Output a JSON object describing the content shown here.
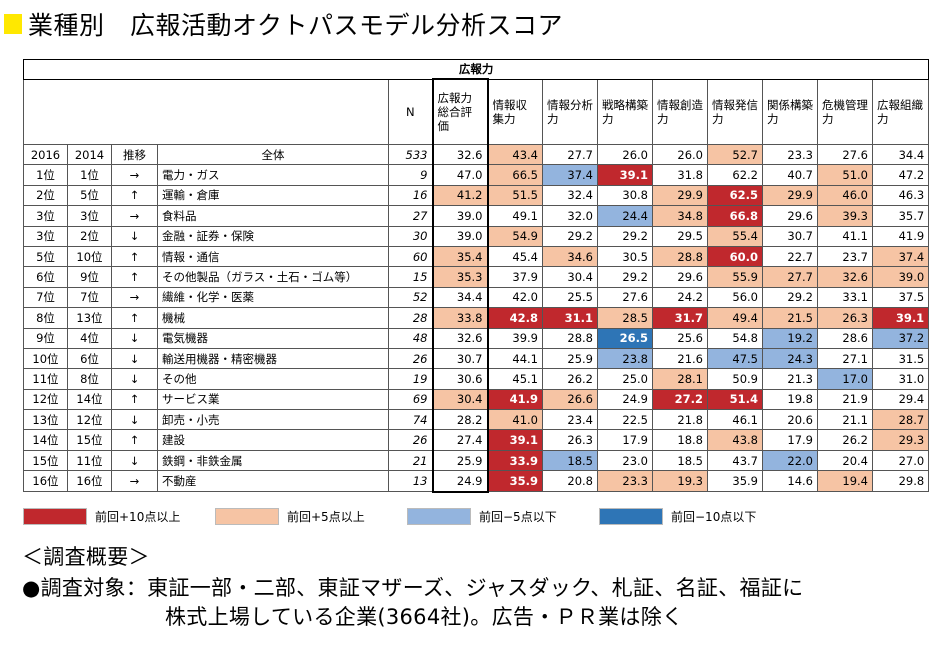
{
  "title": "業種別　広報活動オクトパスモデル分析スコア",
  "table": {
    "group_header": "広報力",
    "columns": [
      "N",
      "広報力総合評価",
      "情報収集力",
      "情報分析力",
      "戦略構築力",
      "情報創造力",
      "情報発信力",
      "関係構築力",
      "危機管理力",
      "広報組織力"
    ],
    "sub_header": [
      "2016",
      "2014",
      "推移",
      "全体",
      "533",
      "32.6",
      "43.4",
      "27.7",
      "26.0",
      "26.0",
      "52.7",
      "23.3",
      "27.6",
      "34.4"
    ],
    "sub_colors": [
      "",
      "salmon",
      "",
      "",
      "",
      "salmon",
      "",
      "",
      "",
      ""
    ],
    "rows": [
      {
        "r16": "1位",
        "r14": "1位",
        "trend": "→",
        "name": "電力・ガス",
        "n": "9",
        "v": [
          "47.0",
          "66.5",
          "37.4",
          "39.1",
          "31.8",
          "62.2",
          "40.7",
          "51.0",
          "47.2"
        ],
        "c": [
          "",
          "salmon",
          "lblue",
          "red",
          "",
          "",
          "",
          "salmon",
          ""
        ]
      },
      {
        "r16": "2位",
        "r14": "5位",
        "trend": "↑",
        "name": "運輸・倉庫",
        "n": "16",
        "v": [
          "41.2",
          "51.5",
          "32.4",
          "30.8",
          "29.9",
          "62.5",
          "29.9",
          "46.0",
          "46.3"
        ],
        "c": [
          "salmon",
          "salmon",
          "",
          "",
          "salmon",
          "red",
          "salmon",
          "salmon",
          ""
        ]
      },
      {
        "r16": "3位",
        "r14": "3位",
        "trend": "→",
        "name": "食料品",
        "n": "27",
        "v": [
          "39.0",
          "49.1",
          "32.0",
          "24.4",
          "34.8",
          "66.8",
          "29.6",
          "39.3",
          "35.7"
        ],
        "c": [
          "",
          "",
          "",
          "lblue",
          "salmon",
          "red",
          "",
          "salmon",
          ""
        ]
      },
      {
        "r16": "3位",
        "r14": "2位",
        "trend": "↓",
        "name": "金融・証券・保険",
        "n": "30",
        "v": [
          "39.0",
          "54.9",
          "29.2",
          "29.2",
          "29.5",
          "55.4",
          "30.7",
          "41.1",
          "41.9"
        ],
        "c": [
          "",
          "salmon",
          "",
          "",
          "",
          "salmon",
          "",
          "",
          ""
        ]
      },
      {
        "r16": "5位",
        "r14": "10位",
        "trend": "↑",
        "name": "情報・通信",
        "n": "60",
        "v": [
          "35.4",
          "45.4",
          "34.6",
          "30.5",
          "28.8",
          "60.0",
          "22.7",
          "23.7",
          "37.4"
        ],
        "c": [
          "salmon",
          "",
          "salmon",
          "",
          "salmon",
          "red",
          "",
          "",
          "salmon"
        ]
      },
      {
        "r16": "6位",
        "r14": "9位",
        "trend": "↑",
        "name": "その他製品（ガラス・土石・ゴム等）",
        "n": "15",
        "v": [
          "35.3",
          "37.9",
          "30.4",
          "29.2",
          "29.6",
          "55.9",
          "27.7",
          "32.6",
          "39.0"
        ],
        "c": [
          "salmon",
          "",
          "",
          "",
          "",
          "salmon",
          "salmon",
          "salmon",
          "salmon"
        ]
      },
      {
        "r16": "7位",
        "r14": "7位",
        "trend": "→",
        "name": "繊維・化学・医薬",
        "n": "52",
        "v": [
          "34.4",
          "42.0",
          "25.5",
          "27.6",
          "24.2",
          "56.0",
          "29.2",
          "33.1",
          "37.5"
        ],
        "c": [
          "",
          "",
          "",
          "",
          "",
          "",
          "",
          "",
          ""
        ]
      },
      {
        "r16": "8位",
        "r14": "13位",
        "trend": "↑",
        "name": "機械",
        "n": "28",
        "v": [
          "33.8",
          "42.8",
          "31.1",
          "28.5",
          "31.7",
          "49.4",
          "21.5",
          "26.3",
          "39.1"
        ],
        "c": [
          "salmon",
          "red",
          "red",
          "salmon",
          "red",
          "salmon",
          "salmon",
          "salmon",
          "red"
        ]
      },
      {
        "r16": "9位",
        "r14": "4位",
        "trend": "↓",
        "name": "電気機器",
        "n": "48",
        "v": [
          "32.6",
          "39.9",
          "28.8",
          "26.5",
          "25.6",
          "54.8",
          "19.2",
          "28.6",
          "37.2"
        ],
        "c": [
          "",
          "",
          "",
          "dblue",
          "",
          "",
          "lblue",
          "",
          "lblue"
        ]
      },
      {
        "r16": "10位",
        "r14": "6位",
        "trend": "↓",
        "name": "輸送用機器・精密機器",
        "n": "26",
        "v": [
          "30.7",
          "44.1",
          "25.9",
          "23.8",
          "21.6",
          "47.5",
          "24.3",
          "27.1",
          "31.5"
        ],
        "c": [
          "",
          "",
          "",
          "lblue",
          "",
          "lblue",
          "lblue",
          "",
          ""
        ]
      },
      {
        "r16": "11位",
        "r14": "8位",
        "trend": "↓",
        "name": "その他",
        "n": "19",
        "v": [
          "30.6",
          "45.1",
          "26.2",
          "25.0",
          "28.1",
          "50.9",
          "21.3",
          "17.0",
          "31.0"
        ],
        "c": [
          "",
          "",
          "",
          "",
          "salmon",
          "",
          "",
          "lblue",
          ""
        ]
      },
      {
        "r16": "12位",
        "r14": "14位",
        "trend": "↑",
        "name": "サービス業",
        "n": "69",
        "v": [
          "30.4",
          "41.9",
          "26.6",
          "24.9",
          "27.2",
          "51.4",
          "19.8",
          "21.9",
          "29.4"
        ],
        "c": [
          "salmon",
          "red",
          "salmon",
          "",
          "red",
          "red",
          "",
          "",
          ""
        ]
      },
      {
        "r16": "13位",
        "r14": "12位",
        "trend": "↓",
        "name": "卸売・小売",
        "n": "74",
        "v": [
          "28.2",
          "41.0",
          "23.4",
          "22.5",
          "21.8",
          "46.1",
          "20.6",
          "21.1",
          "28.7"
        ],
        "c": [
          "",
          "salmon",
          "",
          "",
          "",
          "",
          "",
          "",
          "salmon"
        ]
      },
      {
        "r16": "14位",
        "r14": "15位",
        "trend": "↑",
        "name": "建設",
        "n": "26",
        "v": [
          "27.4",
          "39.1",
          "26.3",
          "17.9",
          "18.8",
          "43.8",
          "17.9",
          "26.2",
          "29.3"
        ],
        "c": [
          "",
          "red",
          "",
          "",
          "",
          "salmon",
          "",
          "",
          "salmon"
        ]
      },
      {
        "r16": "15位",
        "r14": "11位",
        "trend": "↓",
        "name": "鉄鋼・非鉄金属",
        "n": "21",
        "v": [
          "25.9",
          "33.9",
          "18.5",
          "23.0",
          "18.5",
          "43.7",
          "22.0",
          "20.4",
          "27.0"
        ],
        "c": [
          "",
          "red",
          "lblue",
          "",
          "",
          "",
          "lblue",
          "",
          ""
        ]
      },
      {
        "r16": "16位",
        "r14": "16位",
        "trend": "→",
        "name": "不動産",
        "n": "13",
        "v": [
          "24.9",
          "35.9",
          "20.8",
          "23.3",
          "19.3",
          "35.9",
          "14.6",
          "19.4",
          "29.8"
        ],
        "c": [
          "",
          "red",
          "",
          "salmon",
          "salmon",
          "",
          "",
          "salmon",
          ""
        ]
      }
    ]
  },
  "legend": [
    {
      "label": "前回+10点以上",
      "color": "#c0282d"
    },
    {
      "label": "前回+5点以上",
      "color": "#f6c4a4"
    },
    {
      "label": "前回−5点以下",
      "color": "#93b4de"
    },
    {
      "label": "前回−10点以下",
      "color": "#2e75b6"
    }
  ],
  "colors": {
    "red": "#c0282d",
    "salmon": "#f6c4a4",
    "lblue": "#93b4de",
    "dblue": "#2e75b6",
    "title_mark": "#ffe800"
  },
  "notes": {
    "heading": "＜調査概要＞",
    "line1": "●調査対象：東証一部・二部、東証マザーズ、ジャスダック、札証、名証、福証に",
    "line2": "株式上場している企業(3664社)。広告・ＰＲ業は除く"
  }
}
